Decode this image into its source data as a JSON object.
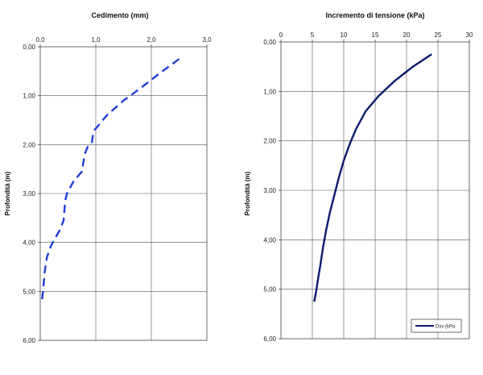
{
  "chart_data": [
    {
      "type": "line",
      "title": "Cedimento (mm)",
      "xlabel": "",
      "ylabel": "Profondità (m)",
      "xlim": [
        0,
        3
      ],
      "ylim": [
        0,
        6
      ],
      "y_inverted": true,
      "x_axis_position": "top",
      "grid": true,
      "x_ticks": [
        "0,0",
        "1,0",
        "2,0",
        "3,0"
      ],
      "y_ticks": [
        "0,00",
        "1,00",
        "2,00",
        "3,00",
        "4,00",
        "5,00",
        "6,00"
      ],
      "series": [
        {
          "name": "",
          "color": "#1f3fd8",
          "dash": true,
          "x": [
            2.5,
            2.2,
            1.8,
            1.5,
            1.2,
            0.98,
            0.95,
            0.93,
            0.85,
            0.8,
            0.75,
            0.6,
            0.48,
            0.45,
            0.42,
            0.35,
            0.2,
            0.12,
            0.08,
            0.05,
            0.02
          ],
          "y": [
            0.25,
            0.5,
            0.85,
            1.1,
            1.4,
            1.7,
            1.8,
            1.95,
            2.05,
            2.2,
            2.55,
            2.75,
            3.0,
            3.15,
            3.55,
            3.75,
            4.05,
            4.3,
            4.6,
            5.0,
            5.25
          ]
        }
      ]
    },
    {
      "type": "line",
      "title": "Incremento di tensione (kPa)",
      "xlabel": "",
      "ylabel": "Profondità (m)",
      "xlim": [
        0,
        30
      ],
      "ylim": [
        0,
        6
      ],
      "y_inverted": true,
      "x_axis_position": "top",
      "grid": true,
      "x_ticks": [
        "0",
        "5",
        "10",
        "15",
        "20",
        "25",
        "30"
      ],
      "y_ticks": [
        "0,00",
        "1,00",
        "2,00",
        "3,00",
        "4,00",
        "5,00",
        "6,00"
      ],
      "legend_position": "bottom-right",
      "series": [
        {
          "name": "Dsv (kPa",
          "color": "#0c1a6e",
          "dash": false,
          "x": [
            24.0,
            21.0,
            18.0,
            15.5,
            13.5,
            12.0,
            11.0,
            10.0,
            9.2,
            8.5,
            7.8,
            7.2,
            6.7,
            6.3,
            5.9,
            5.6,
            5.3
          ],
          "y": [
            0.25,
            0.5,
            0.8,
            1.1,
            1.4,
            1.75,
            2.05,
            2.4,
            2.75,
            3.1,
            3.45,
            3.8,
            4.15,
            4.5,
            4.8,
            5.05,
            5.25
          ]
        }
      ]
    }
  ]
}
